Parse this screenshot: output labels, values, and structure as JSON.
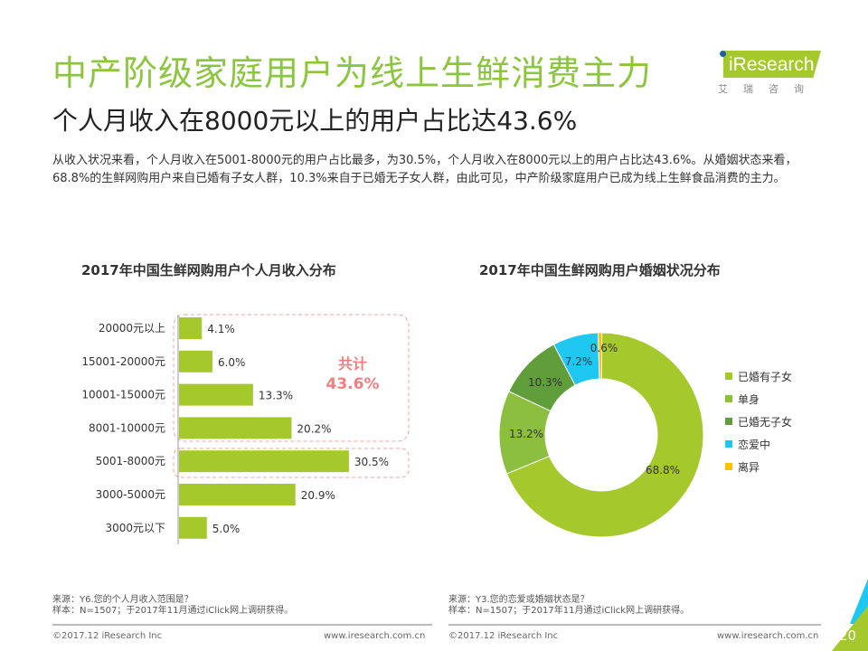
{
  "header": {
    "title": "中产阶级家庭用户为线上生鲜消费主力",
    "subtitle": "个人月收入在8000元以上的用户占比达43.6%",
    "logo_text": "iResearch",
    "logo_cn": "艾瑞咨询"
  },
  "description": "从收入状况来看，个人月收入在5001-8000元的用户占比最多，为30.5%，个人月收入在8000元以上的用户占比达43.6%。从婚姻状态来看，68.8%的生鲜网购用户来自已婚有子女人群，10.3%来自于已婚无子女人群，由此可见，中产阶级家庭用户已成为线上生鲜食品消费的主力。",
  "chart_data": [
    {
      "type": "bar",
      "orientation": "horizontal",
      "title": "2017年中国生鲜网购用户个人月收入分布",
      "categories": [
        "20000元以上",
        "15001-20000元",
        "10001-15000元",
        "8001-10000元",
        "5001-8000元",
        "3000-5000元",
        "3000元以下"
      ],
      "values": [
        4.1,
        6.0,
        13.3,
        20.2,
        30.5,
        20.9,
        5.0
      ],
      "labels": [
        "4.1%",
        "6.0%",
        "13.3%",
        "20.2%",
        "30.5%",
        "20.9%",
        "5.0%"
      ],
      "unit": "%",
      "color": "#a5c82d",
      "annotation": {
        "line1": "共计",
        "line2": "43.6%",
        "color": "#f08080"
      }
    },
    {
      "type": "pie",
      "donut": true,
      "title": "2017年中国生鲜网购用户婚姻状况分布",
      "categories": [
        "已婚有子女",
        "单身",
        "已婚无子女",
        "恋爱中",
        "离异"
      ],
      "values": [
        68.8,
        13.2,
        10.3,
        7.2,
        0.6
      ],
      "labels": [
        "68.8%",
        "13.2%",
        "10.3%",
        "7.2%",
        "0.6%"
      ],
      "colors": [
        "#a5c82d",
        "#8cbf3f",
        "#5f9e3a",
        "#1ec8f0",
        "#ffc000"
      ],
      "legend": "right"
    }
  ],
  "footer": {
    "left": {
      "source": "来源：Y6.您的个人月收入范围是？",
      "sample": "样本：N=1507；于2017年11月通过iClick网上调研获得。",
      "copyright": "©2017.12 iResearch Inc",
      "url": "www.iresearch.com.cn"
    },
    "right": {
      "source": "来源：Y3.您的恋爱或婚姻状态是？",
      "sample": "样本：N=1507；于2017年11月通过iClick网上调研获得。",
      "copyright": "©2017.12 iResearch Inc",
      "url": "www.iresearch.com.cn"
    },
    "page": "20"
  }
}
